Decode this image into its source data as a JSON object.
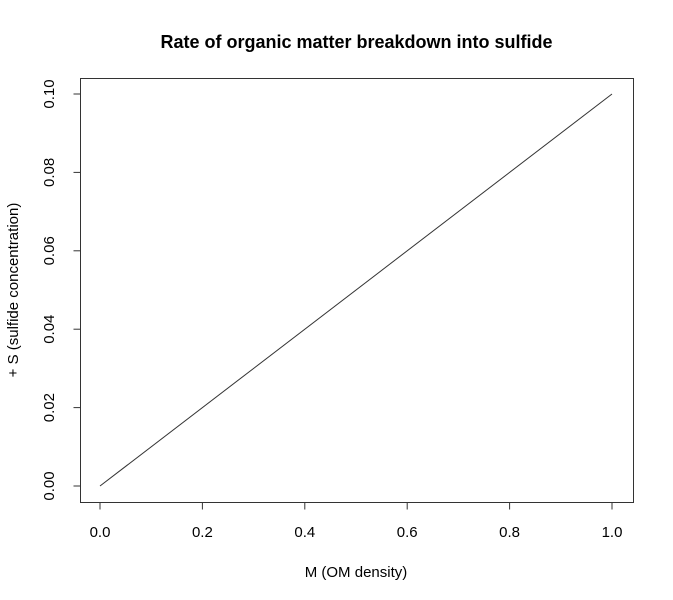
{
  "chart_data": {
    "type": "line",
    "title": "Rate of organic matter breakdown into sulfide",
    "xlabel": "M (OM density)",
    "ylabel": "+ S (sulfide concentration)",
    "xlim": [
      0.0,
      1.0
    ],
    "ylim": [
      0.0,
      0.1
    ],
    "x_ticks": [
      0.0,
      0.2,
      0.4,
      0.6,
      0.8,
      1.0
    ],
    "x_tick_labels": [
      "0.0",
      "0.2",
      "0.4",
      "0.6",
      "0.8",
      "1.0"
    ],
    "y_ticks": [
      0.0,
      0.02,
      0.04,
      0.06,
      0.08,
      0.1
    ],
    "y_tick_labels": [
      "0.00",
      "0.02",
      "0.04",
      "0.06",
      "0.08",
      "0.10"
    ],
    "grid": false,
    "series": [
      {
        "x": [
          0.0,
          1.0
        ],
        "y": [
          0.0,
          0.1
        ],
        "color": "#333333"
      }
    ]
  }
}
